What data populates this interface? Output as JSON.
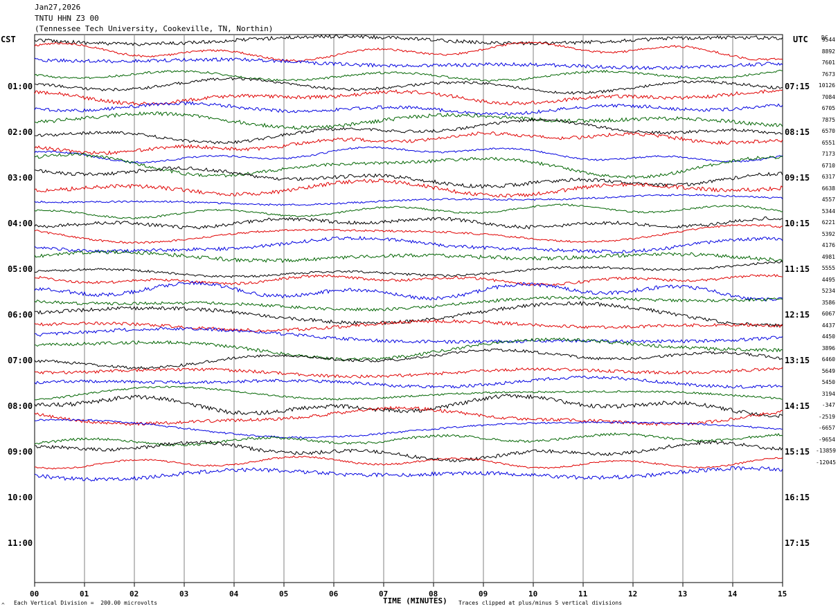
{
  "header": {
    "date": "Jan27,2026",
    "station": "TNTU HHN Z3 00",
    "location": "(Tennessee Tech University, Cookeville, TN, Northin)"
  },
  "axis": {
    "left_zone": "CST",
    "right_zone": "UTC",
    "dc_label": "DC",
    "xlabel": "TIME (MINUTES)",
    "x_ticks": [
      "00",
      "01",
      "02",
      "03",
      "04",
      "05",
      "06",
      "07",
      "08",
      "09",
      "10",
      "11",
      "12",
      "13",
      "14",
      "15"
    ],
    "left_hour_labels": [
      "01:00",
      "02:00",
      "03:00",
      "04:00",
      "05:00",
      "06:00",
      "07:00",
      "08:00",
      "09:00",
      "10:00",
      "11:00"
    ],
    "right_hour_labels": [
      "07:15",
      "08:15",
      "09:15",
      "10:15",
      "11:15",
      "12:15",
      "13:15",
      "14:15",
      "15:15",
      "16:15",
      "17:15"
    ]
  },
  "footer": {
    "corner_mark": "^",
    "scale_note": "Each Vertical Division =  200.00 microvolts",
    "clip_note": "Traces clipped at plus/minus 5 vertical divisions"
  },
  "colors": {
    "trace_cycle": [
      "#000000",
      "#e00000",
      "#0000e0",
      "#006400"
    ],
    "grid": "#808080",
    "background": "#ffffff"
  },
  "chart_data": {
    "type": "line",
    "title": "TNTU HHN Z3 00",
    "xlabel": "TIME (MINUTES)",
    "ylabel": "",
    "xlim": [
      0,
      15
    ],
    "rows_per_hour": 4,
    "minutes_per_row": 15,
    "grid": true,
    "traces_drawn": 39,
    "dc_offsets": [
      9544,
      8892,
      7601,
      7673,
      10126,
      7084,
      6705,
      7875,
      6570,
      6551,
      7173,
      6710,
      6317,
      6638,
      4557,
      5344,
      6221,
      5392,
      4176,
      4981,
      5555,
      4495,
      5234,
      3586,
      6067,
      4437,
      4450,
      3896,
      6460,
      5649,
      5450,
      3194,
      -347,
      -2519,
      -6657,
      -9654,
      -13859,
      -12045
    ]
  }
}
